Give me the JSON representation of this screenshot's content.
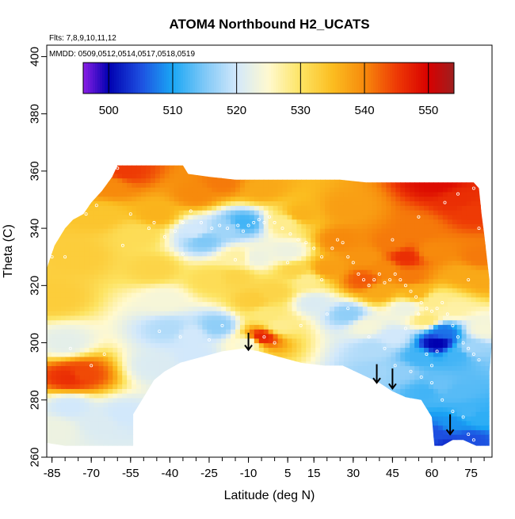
{
  "chart_data": {
    "type": "heatmap",
    "title": "ATOM4 Northbound H2_UCATS",
    "flights_note": "Flts: 7,8,9,10,11,12",
    "dates_note": "MMDD: 0509,0512,0514,0517,0518,0519",
    "xlabel": "Latitude (deg N)",
    "ylabel": "Theta (C)",
    "xlim": [
      -87,
      83
    ],
    "ylim": [
      260,
      404
    ],
    "x_ticks": [
      -85,
      -70,
      -55,
      -40,
      -25,
      -10,
      5,
      15,
      30,
      45,
      60,
      75
    ],
    "y_ticks": [
      260,
      280,
      300,
      320,
      340,
      360,
      380,
      400
    ],
    "colorbar": {
      "range": [
        496,
        554
      ],
      "ticks": [
        500,
        510,
        520,
        530,
        540,
        550
      ],
      "stops": [
        {
          "value": 496,
          "color": "#8b1fe6"
        },
        {
          "value": 500,
          "color": "#0000b0"
        },
        {
          "value": 505,
          "color": "#1d4fe0"
        },
        {
          "value": 510,
          "color": "#1aa7f5"
        },
        {
          "value": 515,
          "color": "#7fc8f7"
        },
        {
          "value": 520,
          "color": "#d2e8fb"
        },
        {
          "value": 525,
          "color": "#fff9cf"
        },
        {
          "value": 530,
          "color": "#fde463"
        },
        {
          "value": 535,
          "color": "#fbbd20"
        },
        {
          "value": 540,
          "color": "#f78a0c"
        },
        {
          "value": 545,
          "color": "#ee3a05"
        },
        {
          "value": 550,
          "color": "#d80000"
        },
        {
          "value": 554,
          "color": "#9e1f1f"
        }
      ]
    },
    "field_samples": [
      [
        -78,
        288,
        546
      ],
      [
        -74,
        289,
        544
      ],
      [
        -84,
        270,
        523
      ],
      [
        -78,
        278,
        520
      ],
      [
        -66,
        272,
        521
      ],
      [
        -58,
        275,
        520
      ],
      [
        -80,
        300,
        522
      ],
      [
        -84,
        316,
        533
      ],
      [
        -75,
        330,
        533
      ],
      [
        -66,
        345,
        534
      ],
      [
        -62,
        355,
        540
      ],
      [
        -57,
        360,
        545
      ],
      [
        -52,
        338,
        531
      ],
      [
        -46,
        326,
        532
      ],
      [
        -42,
        315,
        524
      ],
      [
        -40,
        305,
        518
      ],
      [
        -32,
        303,
        520
      ],
      [
        -45,
        292,
        521
      ],
      [
        -30,
        295,
        520
      ],
      [
        -22,
        306,
        516
      ],
      [
        -24,
        322,
        531
      ],
      [
        -15,
        323,
        532
      ],
      [
        -30,
        339,
        520
      ],
      [
        -27,
        336,
        515
      ],
      [
        -18,
        340,
        517
      ],
      [
        -12,
        342,
        512
      ],
      [
        -45,
        345,
        536
      ],
      [
        -30,
        352,
        540
      ],
      [
        -20,
        356,
        541
      ],
      [
        -5,
        354,
        537
      ],
      [
        -8,
        315,
        533
      ],
      [
        -10,
        300,
        524
      ],
      [
        -5,
        302,
        547
      ],
      [
        2,
        306,
        528
      ],
      [
        0,
        318,
        532
      ],
      [
        -7,
        330,
        523
      ],
      [
        4,
        342,
        528
      ],
      [
        5,
        332,
        523
      ],
      [
        12,
        322,
        528
      ],
      [
        10,
        345,
        536
      ],
      [
        15,
        314,
        521
      ],
      [
        20,
        326,
        538
      ],
      [
        25,
        336,
        540
      ],
      [
        28,
        310,
        516
      ],
      [
        27,
        347,
        538
      ],
      [
        35,
        330,
        539
      ],
      [
        34,
        322,
        543
      ],
      [
        40,
        318,
        537
      ],
      [
        42,
        326,
        540
      ],
      [
        45,
        335,
        541
      ],
      [
        50,
        330,
        546
      ],
      [
        52,
        323,
        541
      ],
      [
        55,
        340,
        541
      ],
      [
        60,
        332,
        540
      ],
      [
        62,
        356,
        549
      ],
      [
        70,
        350,
        546
      ],
      [
        75,
        346,
        545
      ],
      [
        78,
        330,
        541
      ],
      [
        72,
        324,
        537
      ],
      [
        80,
        322,
        537
      ],
      [
        38,
        298,
        518
      ],
      [
        35,
        306,
        524
      ],
      [
        45,
        302,
        520
      ],
      [
        48,
        290,
        516
      ],
      [
        55,
        295,
        512
      ],
      [
        50,
        312,
        523
      ],
      [
        40,
        290,
        517
      ],
      [
        58,
        308,
        529
      ],
      [
        62,
        300,
        500
      ],
      [
        64,
        304,
        507
      ],
      [
        70,
        296,
        512
      ],
      [
        75,
        298,
        517
      ],
      [
        80,
        305,
        524
      ],
      [
        58,
        283,
        512
      ],
      [
        63,
        285,
        514
      ],
      [
        70,
        283,
        513
      ],
      [
        62,
        268,
        505
      ],
      [
        68,
        272,
        509
      ],
      [
        74,
        276,
        512
      ],
      [
        78,
        274,
        511
      ],
      [
        74,
        266,
        505
      ],
      [
        66,
        264,
        503
      ],
      [
        62,
        315,
        528
      ],
      [
        68,
        312,
        527
      ],
      [
        54,
        318,
        536
      ],
      [
        8,
        325,
        532
      ],
      [
        -3,
        310,
        529
      ],
      [
        -14,
        330,
        527
      ]
    ],
    "sample_points": [
      [
        -85,
        330
      ],
      [
        -83,
        337
      ],
      [
        -80,
        342
      ],
      [
        -72,
        345
      ],
      [
        -68,
        348
      ],
      [
        -60,
        361
      ],
      [
        -55,
        345
      ],
      [
        -48,
        340
      ],
      [
        -46,
        342
      ],
      [
        -42,
        337
      ],
      [
        -38,
        339
      ],
      [
        -35,
        342
      ],
      [
        -32,
        346
      ],
      [
        -28,
        342
      ],
      [
        -24,
        340
      ],
      [
        -21,
        341
      ],
      [
        -18,
        340
      ],
      [
        -14,
        341
      ],
      [
        -12,
        339
      ],
      [
        -10,
        341
      ],
      [
        -8,
        342
      ],
      [
        -6,
        343
      ],
      [
        -4,
        342
      ],
      [
        -2,
        344
      ],
      [
        0,
        342
      ],
      [
        3,
        340
      ],
      [
        6,
        338
      ],
      [
        9,
        336
      ],
      [
        12,
        335
      ],
      [
        15,
        333
      ],
      [
        18,
        330
      ],
      [
        22,
        333
      ],
      [
        24,
        336
      ],
      [
        26,
        335
      ],
      [
        28,
        330
      ],
      [
        30,
        328
      ],
      [
        32,
        324
      ],
      [
        34,
        322
      ],
      [
        36,
        320
      ],
      [
        38,
        322
      ],
      [
        40,
        324
      ],
      [
        42,
        321
      ],
      [
        44,
        322
      ],
      [
        46,
        324
      ],
      [
        48,
        322
      ],
      [
        50,
        320
      ],
      [
        52,
        318
      ],
      [
        54,
        316
      ],
      [
        56,
        314
      ],
      [
        58,
        312
      ],
      [
        60,
        311
      ],
      [
        62,
        312
      ],
      [
        64,
        314
      ],
      [
        66,
        310
      ],
      [
        68,
        306
      ],
      [
        70,
        302
      ],
      [
        72,
        300
      ],
      [
        74,
        298
      ],
      [
        76,
        296
      ],
      [
        78,
        294
      ],
      [
        -25,
        301
      ],
      [
        -36,
        302
      ],
      [
        -44,
        304
      ],
      [
        -20,
        306
      ],
      [
        -4,
        302
      ],
      [
        0,
        300
      ],
      [
        10,
        306
      ],
      [
        20,
        310
      ],
      [
        28,
        312
      ],
      [
        36,
        302
      ],
      [
        42,
        298
      ],
      [
        46,
        292
      ],
      [
        52,
        290
      ],
      [
        56,
        288
      ],
      [
        60,
        286
      ],
      [
        64,
        280
      ],
      [
        68,
        276
      ],
      [
        72,
        274
      ],
      [
        74,
        268
      ],
      [
        76,
        266
      ],
      [
        70,
        262
      ],
      [
        60,
        292
      ],
      [
        62,
        297
      ],
      [
        58,
        296
      ],
      [
        -65,
        296
      ],
      [
        -78,
        298
      ],
      [
        -70,
        292
      ],
      [
        -80,
        330
      ],
      [
        -58,
        334
      ],
      [
        -35,
        331
      ],
      [
        -15,
        329
      ],
      [
        5,
        328
      ],
      [
        18,
        322
      ],
      [
        45,
        336
      ],
      [
        55,
        344
      ],
      [
        65,
        349
      ],
      [
        70,
        352
      ],
      [
        76,
        354
      ],
      [
        78,
        340
      ],
      [
        74,
        322
      ],
      [
        55,
        310
      ],
      [
        50,
        305
      ]
    ],
    "arrows": [
      {
        "lat": -10,
        "theta_top": 303.5,
        "theta_tip": 297.5
      },
      {
        "lat": 39,
        "theta_top": 292.5,
        "theta_tip": 286
      },
      {
        "lat": 45,
        "theta_top": 291,
        "theta_tip": 284
      },
      {
        "lat": 67,
        "theta_top": 275,
        "theta_tip": 268
      }
    ],
    "boundary_top": [
      [
        -87,
        265
      ],
      [
        -87,
        326
      ],
      [
        -84,
        334
      ],
      [
        -80,
        340
      ],
      [
        -77,
        343
      ],
      [
        -73,
        345
      ],
      [
        -70,
        349
      ],
      [
        -66,
        353
      ],
      [
        -62,
        358
      ],
      [
        -60,
        362
      ],
      [
        -56,
        362
      ],
      [
        -52,
        362
      ],
      [
        -46,
        362
      ],
      [
        -40,
        362
      ],
      [
        -35,
        362
      ],
      [
        -33,
        359
      ],
      [
        -25,
        358
      ],
      [
        -15,
        357
      ],
      [
        -5,
        357
      ],
      [
        5,
        357
      ],
      [
        15,
        357
      ],
      [
        25,
        357
      ],
      [
        35,
        356
      ],
      [
        45,
        356
      ],
      [
        55,
        356
      ],
      [
        65,
        356
      ],
      [
        70,
        356
      ],
      [
        76,
        356
      ],
      [
        78,
        354
      ],
      [
        79,
        345
      ],
      [
        80,
        338
      ],
      [
        81,
        330
      ],
      [
        82,
        322
      ],
      [
        82,
        310
      ],
      [
        83,
        300
      ],
      [
        82,
        290
      ],
      [
        82,
        280
      ],
      [
        82,
        272
      ],
      [
        82,
        264
      ]
    ],
    "boundary_bottom": [
      [
        82,
        264
      ],
      [
        77,
        264
      ],
      [
        72,
        266
      ],
      [
        68,
        266
      ],
      [
        64,
        264
      ],
      [
        61,
        264
      ],
      [
        60,
        274
      ],
      [
        56,
        280
      ],
      [
        50,
        281
      ],
      [
        45,
        283
      ],
      [
        40,
        286
      ],
      [
        33,
        289
      ],
      [
        26,
        292
      ],
      [
        19,
        292
      ],
      [
        10,
        293
      ],
      [
        2,
        295
      ],
      [
        -6,
        297
      ],
      [
        -12,
        298
      ],
      [
        -20,
        297
      ],
      [
        -28,
        295
      ],
      [
        -36,
        293
      ],
      [
        -42,
        290
      ],
      [
        -46,
        287
      ],
      [
        -50,
        281
      ],
      [
        -54,
        275
      ],
      [
        -54,
        264
      ],
      [
        -60,
        264
      ],
      [
        -70,
        264
      ],
      [
        -80,
        264
      ],
      [
        -87,
        265
      ]
    ]
  }
}
